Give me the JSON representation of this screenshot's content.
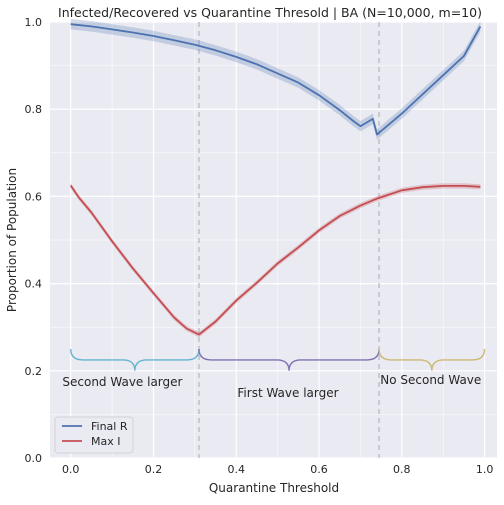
{
  "chart_data": {
    "type": "line",
    "title": "Infected/Recovered vs Quarantine Thresold | BA (N=10,000, m=10)",
    "xlabel": "Quarantine Threshold",
    "ylabel": "Proportion of Population",
    "xlim": [
      -0.05,
      1.03
    ],
    "ylim": [
      0.0,
      1.0
    ],
    "x_ticks": [
      {
        "value": 0.0,
        "label": "0.0"
      },
      {
        "value": 0.2,
        "label": "0.2"
      },
      {
        "value": 0.4,
        "label": "0.4"
      },
      {
        "value": 0.6,
        "label": "0.6"
      },
      {
        "value": 0.8,
        "label": "0.8"
      },
      {
        "value": 1.0,
        "label": "1.0"
      }
    ],
    "y_ticks": [
      {
        "value": 0.0,
        "label": "0.0"
      },
      {
        "value": 0.2,
        "label": "0.2"
      },
      {
        "value": 0.4,
        "label": "0.4"
      },
      {
        "value": 0.6,
        "label": "0.6"
      },
      {
        "value": 0.8,
        "label": "0.8"
      },
      {
        "value": 1.0,
        "label": "1.0"
      }
    ],
    "grid": true,
    "legend_position": "bottom-left",
    "series": [
      {
        "name": "Final R",
        "color": "#4c72b0",
        "band_width": 0.012,
        "points": [
          [
            0.0,
            0.995
          ],
          [
            0.05,
            0.99
          ],
          [
            0.1,
            0.983
          ],
          [
            0.15,
            0.976
          ],
          [
            0.2,
            0.968
          ],
          [
            0.25,
            0.958
          ],
          [
            0.3,
            0.948
          ],
          [
            0.35,
            0.935
          ],
          [
            0.4,
            0.92
          ],
          [
            0.45,
            0.903
          ],
          [
            0.5,
            0.882
          ],
          [
            0.55,
            0.861
          ],
          [
            0.6,
            0.832
          ],
          [
            0.65,
            0.798
          ],
          [
            0.68,
            0.775
          ],
          [
            0.7,
            0.761
          ],
          [
            0.72,
            0.772
          ],
          [
            0.73,
            0.778
          ],
          [
            0.74,
            0.742
          ],
          [
            0.8,
            0.79
          ],
          [
            0.85,
            0.834
          ],
          [
            0.9,
            0.878
          ],
          [
            0.95,
            0.922
          ],
          [
            0.99,
            0.99
          ]
        ]
      },
      {
        "name": "Max I",
        "color": "#c44e52",
        "band_width": 0.006,
        "points": [
          [
            0.0,
            0.625
          ],
          [
            0.02,
            0.597
          ],
          [
            0.05,
            0.563
          ],
          [
            0.1,
            0.497
          ],
          [
            0.15,
            0.435
          ],
          [
            0.2,
            0.378
          ],
          [
            0.25,
            0.322
          ],
          [
            0.28,
            0.297
          ],
          [
            0.31,
            0.283
          ],
          [
            0.35,
            0.313
          ],
          [
            0.4,
            0.361
          ],
          [
            0.45,
            0.402
          ],
          [
            0.5,
            0.446
          ],
          [
            0.55,
            0.483
          ],
          [
            0.6,
            0.522
          ],
          [
            0.65,
            0.555
          ],
          [
            0.7,
            0.579
          ],
          [
            0.74,
            0.595
          ],
          [
            0.8,
            0.614
          ],
          [
            0.85,
            0.621
          ],
          [
            0.9,
            0.624
          ],
          [
            0.95,
            0.624
          ],
          [
            0.99,
            0.622
          ]
        ]
      }
    ],
    "thresholds": [
      0.31,
      0.745
    ],
    "annotations": [
      {
        "label": "Second Wave larger",
        "from": 0.0,
        "to": 0.31,
        "color": "#64b5cd",
        "text_x": 0.125,
        "text_y": 0.165
      },
      {
        "label": "First Wave larger",
        "from": 0.31,
        "to": 0.745,
        "color": "#8172b2",
        "text_x": 0.525,
        "text_y": 0.14
      },
      {
        "label": "No Second Wave",
        "from": 0.745,
        "to": 1.0,
        "color": "#ccb974",
        "text_x": 0.87,
        "text_y": 0.17
      }
    ]
  }
}
